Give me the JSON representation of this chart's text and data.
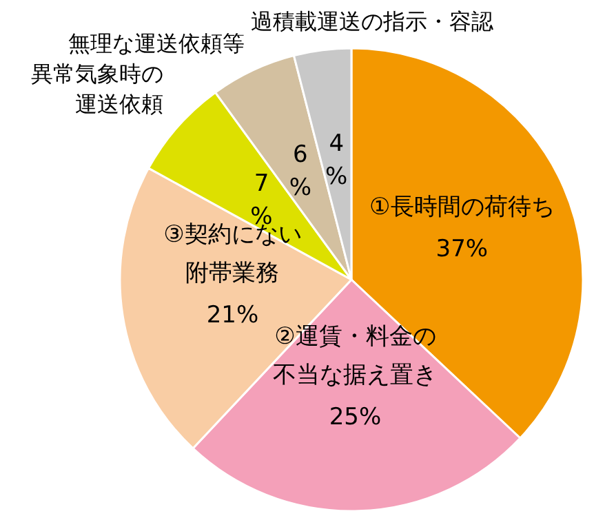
{
  "chart_data": {
    "type": "pie",
    "categories": [
      "①長時間の荷待ち",
      "②運賃・料金の不当な据え置き",
      "③契約にない附帯業務",
      "異常気象時の運送依頼",
      "無理な運送依頼等",
      "過積載運送の指示・容認"
    ],
    "values": [
      37,
      25,
      21,
      7,
      6,
      4
    ],
    "value_labels": [
      "37%",
      "25%",
      "21%",
      "7%",
      "6%",
      "4%"
    ],
    "colors": [
      "#f39800",
      "#f4a0b9",
      "#f9cda4",
      "#dde000",
      "#d3c0a0",
      "#c8c8c8"
    ],
    "legend": false
  }
}
